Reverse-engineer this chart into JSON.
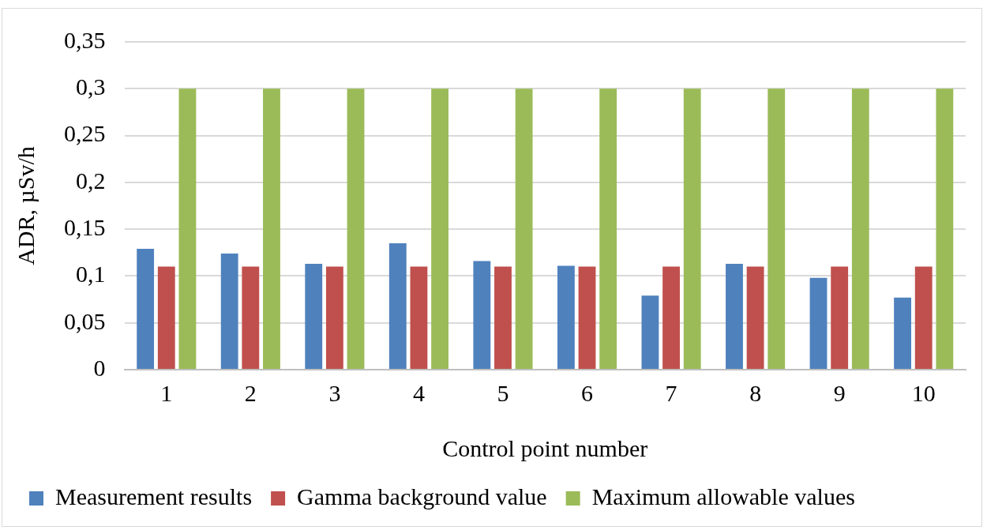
{
  "chart_data": {
    "type": "bar",
    "xlabel": "Control point number",
    "ylabel": "ADR, µSv/h",
    "categories": [
      "1",
      "2",
      "3",
      "4",
      "5",
      "6",
      "7",
      "8",
      "9",
      "10"
    ],
    "series": [
      {
        "name": "Measurement results",
        "color": "#4f81bd",
        "values": [
          0.129,
          0.124,
          0.113,
          0.135,
          0.116,
          0.111,
          0.079,
          0.113,
          0.098,
          0.077
        ]
      },
      {
        "name": "Gamma background value",
        "color": "#c0504d",
        "values": [
          0.11,
          0.11,
          0.11,
          0.11,
          0.11,
          0.11,
          0.11,
          0.11,
          0.11,
          0.11
        ]
      },
      {
        "name": "Maximum allowable values",
        "color": "#9bbb59",
        "values": [
          0.3,
          0.3,
          0.3,
          0.3,
          0.3,
          0.3,
          0.3,
          0.3,
          0.3,
          0.3
        ]
      }
    ],
    "ylim": [
      0,
      0.35
    ],
    "yticks": [
      0,
      {
        "value": 0.05,
        "label": "0,05"
      },
      {
        "value": 0.1,
        "label": "0,1"
      },
      {
        "value": 0.15,
        "label": "0,15"
      },
      {
        "value": 0.2,
        "label": "0,2"
      },
      {
        "value": 0.25,
        "label": "0,25"
      },
      {
        "value": 0.3,
        "label": "0,3"
      },
      {
        "value": 0.35,
        "label": "0,35"
      }
    ],
    "grid": "y",
    "legend": "bottom"
  }
}
